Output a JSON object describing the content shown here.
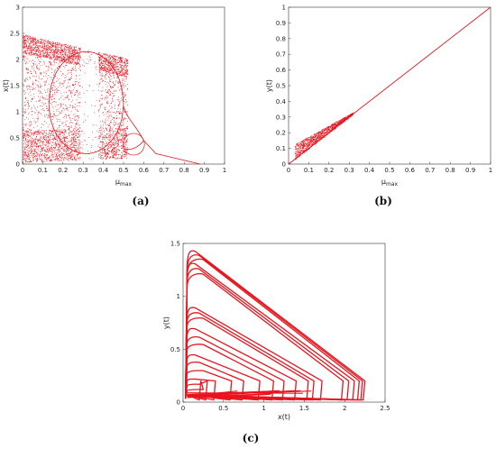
{
  "chart_data": [
    {
      "id": "a",
      "type": "scatter",
      "title": "",
      "caption": "(a)",
      "xlabel": "μmax",
      "ylabel": "x(t)",
      "xlim": [
        0,
        1
      ],
      "ylim": [
        0,
        3
      ],
      "xticks": [
        "0",
        "0.1",
        "0.2",
        "0.3",
        "0.4",
        "0.5",
        "0.6",
        "0.7",
        "0.8",
        "0.9",
        "1"
      ],
      "yticks": [
        "0",
        "0.5",
        "1",
        "1.5",
        "2",
        "2.5",
        "3"
      ],
      "grid": false,
      "legend": "none",
      "color": "#e8141e",
      "description_points": {
        "chaotic_band": {
          "x": [
            0.0,
            0.5
          ],
          "ymax": [
            2.48,
            2.0
          ],
          "ymin": [
            0.03,
            0.1
          ]
        },
        "periodic_window": {
          "x": [
            0.28,
            0.38
          ]
        },
        "period_doubling": [
          {
            "x": 0.52,
            "y": [
              0.85,
              0.35
            ]
          },
          {
            "x": 0.55,
            "y": [
              0.6,
              0.2
            ]
          }
        ],
        "fixed_point": {
          "x": [
            0.66,
            0.88
          ],
          "y": [
            0.2,
            0.0
          ]
        }
      }
    },
    {
      "id": "b",
      "type": "scatter",
      "title": "",
      "caption": "(b)",
      "xlabel": "μmax",
      "ylabel": "y(t)",
      "xlim": [
        0,
        1
      ],
      "ylim": [
        0,
        1
      ],
      "xticks": [
        "0",
        "0.1",
        "0.2",
        "0.3",
        "0.4",
        "0.5",
        "0.6",
        "0.7",
        "0.8",
        "0.9",
        "1"
      ],
      "yticks": [
        "0",
        "0.1",
        "0.2",
        "0.3",
        "0.4",
        "0.5",
        "0.6",
        "0.7",
        "0.8",
        "0.9",
        "1"
      ],
      "grid": false,
      "legend": "none",
      "color": "#e8141e",
      "line": {
        "x": [
          0.0,
          1.0
        ],
        "y": [
          0.0,
          1.0
        ]
      },
      "scatter_band": {
        "x": [
          0.03,
          0.32
        ],
        "y_above_line": [
          0.02,
          0.09
        ]
      }
    },
    {
      "id": "c",
      "type": "line",
      "title": "",
      "caption": "(c)",
      "xlabel": "x(t)",
      "ylabel": "y(t)",
      "xlim": [
        0,
        2.5
      ],
      "ylim": [
        0,
        1.5
      ],
      "xticks": [
        "0",
        "0.5",
        "1",
        "1.5",
        "2",
        "2.5"
      ],
      "yticks": [
        "0",
        "0.5",
        "1",
        "1.5"
      ],
      "grid": false,
      "legend": "none",
      "color": "#e8141e",
      "orbits": [
        {
          "peak_y": 1.44,
          "right_x": 2.25
        },
        {
          "peak_y": 1.4,
          "right_x": 2.22
        },
        {
          "peak_y": 1.36,
          "right_x": 2.18
        },
        {
          "peak_y": 1.32,
          "right_x": 2.12
        },
        {
          "peak_y": 1.27,
          "right_x": 2.05
        },
        {
          "peak_y": 1.22,
          "right_x": 1.98
        },
        {
          "peak_y": 0.9,
          "right_x": 1.72
        },
        {
          "peak_y": 0.85,
          "right_x": 1.62
        },
        {
          "peak_y": 0.8,
          "right_x": 1.55
        },
        {
          "peak_y": 0.7,
          "right_x": 1.4
        },
        {
          "peak_y": 0.62,
          "right_x": 1.25
        },
        {
          "peak_y": 0.55,
          "right_x": 1.12
        },
        {
          "peak_y": 0.45,
          "right_x": 0.95
        },
        {
          "peak_y": 0.38,
          "right_x": 0.75
        },
        {
          "peak_y": 0.3,
          "right_x": 0.6
        },
        {
          "peak_y": 0.22,
          "right_x": 0.4
        },
        {
          "peak_y": 0.17,
          "right_x": 0.3
        },
        {
          "peak_y": 0.12,
          "right_x": 0.22
        }
      ]
    }
  ]
}
